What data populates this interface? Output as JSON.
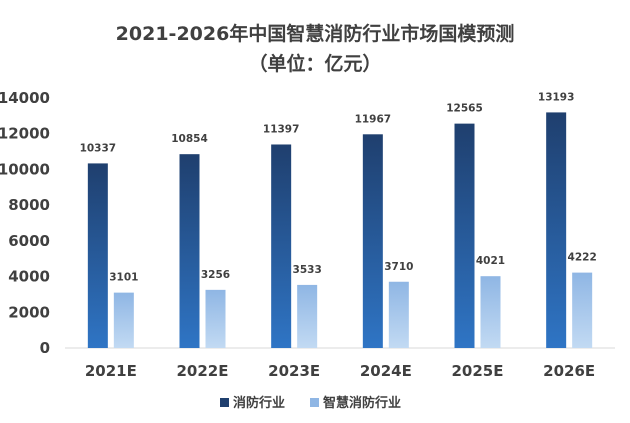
{
  "chart_data": {
    "type": "bar",
    "title": "2021-2026年中国智慧消防行业市场国模预测",
    "subtitle": "（单位：亿元）",
    "categories": [
      "2021E",
      "2022E",
      "2023E",
      "2024E",
      "2025E",
      "2026E"
    ],
    "series": [
      {
        "name": "消防行业",
        "values": [
          10337,
          10854,
          11397,
          11967,
          12565,
          13193
        ],
        "color_top": "#1f3f6e",
        "color_bottom": "#2f75c5"
      },
      {
        "name": "智慧消防行业",
        "values": [
          3101,
          3256,
          3533,
          3710,
          4021,
          4222
        ],
        "color_top": "#8fb6e4",
        "color_bottom": "#c2daf3"
      }
    ],
    "yticks": [
      0,
      2000,
      4000,
      6000,
      8000,
      10000,
      12000,
      14000
    ],
    "ylim": [
      0,
      14000
    ],
    "grid": false,
    "legend_position": "bottom"
  }
}
